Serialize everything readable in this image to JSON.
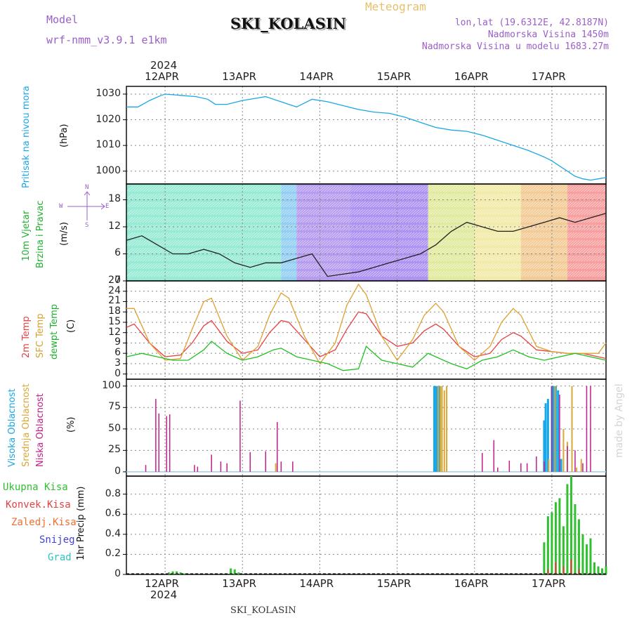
{
  "header": {
    "model_label": "Model",
    "model_value": "wrf-nmm_v3.9.1 e1km",
    "title": "SKI_KOLASIN",
    "meteogram_label": "Meteogram",
    "lonlat": "lon,lat (19.6312E, 42.8187N)",
    "altitude": "Nadmorska Visina 1450m",
    "model_altitude": "Nadmorska Visina u modelu 1683.27m",
    "footer_title": "SKI_KOLASIN",
    "watermark": "made by Angel"
  },
  "colors": {
    "pressure": "#1aa7e8",
    "temp2m": "#e84040",
    "sfc": "#e0a030",
    "dew": "#20c020",
    "high_cloud": "#1aa7e8",
    "mid_cloud": "#d8a838",
    "low_cloud": "#c0208a",
    "precip_total": "#30c030",
    "precip_conv": "#e84040",
    "precip_frz": "#f07030",
    "snow": "#4040e0",
    "hail": "#30c0c0"
  },
  "time_axis": {
    "year": "2024",
    "day_labels": [
      "12APR",
      "13APR",
      "14APR",
      "15APR",
      "16APR",
      "17APR"
    ],
    "start_day_offset": -0.5,
    "end_day_offset": 5.7
  },
  "panels": {
    "pressure": {
      "ylabel_main": "Pritisak na nivou mora",
      "ylabel_unit": "(hPa)",
      "yticks": [
        "1000",
        "1010",
        "1020",
        "1030"
      ],
      "ylim": [
        995,
        1033
      ]
    },
    "wind": {
      "ylabel_main": "10m Vjetar",
      "ylabel_sub": "Brzina i Pravac",
      "ylabel_unit": "(m/s)",
      "yticks": [
        "0",
        "6",
        "12",
        "18"
      ],
      "ylim": [
        0,
        21.5
      ],
      "compass_n": "N",
      "compass_s": "S",
      "compass_w": "W",
      "compass_e": "E"
    },
    "temperature": {
      "ylabel_2m": "2m Temp",
      "ylabel_sfc": "SFC Temp",
      "ylabel_dew": "dewpt Temp",
      "ylabel_unit": "(C)",
      "yticks": [
        "0",
        "3",
        "6",
        "9",
        "12",
        "15",
        "18",
        "21",
        "24",
        "27"
      ],
      "ylim": [
        -1.5,
        27
      ]
    },
    "cloud": {
      "ylabel_high": "Visoka Oblacnost",
      "ylabel_mid": "Srednja Oblacnost",
      "ylabel_low": "Niska Oblacnost",
      "ylabel_unit": "(%)",
      "yticks": [
        "0",
        "25",
        "50",
        "75",
        "100"
      ],
      "ylim": [
        -5,
        108
      ]
    },
    "precip": {
      "legend": [
        "Ukupna Kisa",
        "Konvek.Kisa",
        "Zaledj.Kisa",
        "Snijeg",
        "Grad"
      ],
      "ylabel_main": "1hr Precip",
      "ylabel_unit": "(mm)",
      "yticks": [
        "0",
        "0.2",
        "0.4",
        "0.6",
        "0.8"
      ],
      "ylim": [
        0,
        0.98
      ]
    }
  },
  "chart_data": [
    {
      "type": "line",
      "title": "Pritisak na nivou mora",
      "ylabel": "(hPa)",
      "series": [
        {
          "name": "Pritisak na nivou mora",
          "x": [
            -0.5,
            -0.35,
            -0.2,
            -0.05,
            0.0,
            0.2,
            0.4,
            0.55,
            0.65,
            0.8,
            1.0,
            1.2,
            1.3,
            1.45,
            1.6,
            1.7,
            1.9,
            2.1,
            2.3,
            2.5,
            2.7,
            2.9,
            3.1,
            3.3,
            3.5,
            3.7,
            3.9,
            4.1,
            4.3,
            4.5,
            4.7,
            4.9,
            5.0,
            5.1,
            5.2,
            5.3,
            5.4,
            5.5,
            5.6,
            5.7
          ],
          "y": [
            1025,
            1025,
            1027.5,
            1029.5,
            1030,
            1029.5,
            1029,
            1028,
            1026,
            1026,
            1027.5,
            1028.5,
            1029,
            1027.5,
            1026,
            1025,
            1028,
            1027,
            1025.5,
            1024,
            1023,
            1022.5,
            1021,
            1019,
            1017,
            1016,
            1015.5,
            1014,
            1012,
            1010,
            1008,
            1005.5,
            1004,
            1002,
            1000,
            998,
            997,
            996.5,
            997,
            997.5
          ]
        }
      ],
      "ylim": [
        995,
        1033
      ]
    },
    {
      "type": "line",
      "title": "10m Vjetar Brzina i Pravac",
      "ylabel": "(m/s)",
      "series": [
        {
          "name": "10m Vjetar",
          "x": [
            -0.5,
            -0.3,
            -0.1,
            0.1,
            0.3,
            0.5,
            0.7,
            0.9,
            1.1,
            1.3,
            1.5,
            1.7,
            1.9,
            2.1,
            2.3,
            2.5,
            2.7,
            2.9,
            3.1,
            3.3,
            3.5,
            3.7,
            3.9,
            4.1,
            4.3,
            4.5,
            4.7,
            4.9,
            5.1,
            5.3,
            5.5,
            5.7
          ],
          "y": [
            9,
            10,
            8,
            6,
            6,
            7,
            6,
            4,
            3,
            4,
            4,
            5,
            6,
            1,
            1.5,
            2,
            3,
            4,
            5,
            6,
            8,
            11,
            13,
            12,
            11,
            11,
            12,
            13,
            14,
            13,
            14,
            15
          ]
        }
      ],
      "ylim": [
        0,
        21.5
      ]
    },
    {
      "type": "line",
      "title": "",
      "ylabel": "(C)",
      "series": [
        {
          "name": "2m Temp",
          "x": [
            -0.5,
            -0.4,
            -0.2,
            0.0,
            0.2,
            0.35,
            0.5,
            0.6,
            0.8,
            1.0,
            1.2,
            1.35,
            1.5,
            1.6,
            1.8,
            2.0,
            2.2,
            2.35,
            2.5,
            2.6,
            2.8,
            3.0,
            3.2,
            3.35,
            3.5,
            3.6,
            3.8,
            4.0,
            4.2,
            4.35,
            4.5,
            4.6,
            4.8,
            5.0,
            5.2,
            5.4,
            5.6,
            5.7
          ],
          "y": [
            13.5,
            14.5,
            9,
            5,
            5.5,
            9,
            14,
            15.5,
            9.5,
            6,
            7,
            12,
            15.5,
            15,
            10,
            5,
            7,
            13,
            18,
            17.5,
            11,
            8,
            9,
            12.5,
            14.5,
            13,
            8,
            5,
            6,
            10,
            12,
            11,
            7,
            6.5,
            6,
            6,
            5,
            4.5
          ]
        },
        {
          "name": "SFC Temp",
          "x": [
            -0.5,
            -0.4,
            -0.2,
            0.0,
            0.2,
            0.35,
            0.5,
            0.6,
            0.8,
            1.0,
            1.2,
            1.35,
            1.5,
            1.6,
            1.8,
            2.0,
            2.2,
            2.35,
            2.5,
            2.6,
            2.8,
            3.0,
            3.2,
            3.35,
            3.5,
            3.6,
            3.8,
            4.0,
            4.2,
            4.35,
            4.5,
            4.6,
            4.8,
            5.0,
            5.2,
            5.4,
            5.6,
            5.7
          ],
          "y": [
            19,
            19,
            9,
            4,
            4.5,
            13,
            21,
            22,
            11,
            4,
            8,
            17,
            23.5,
            22,
            11,
            3,
            9,
            20,
            26,
            23,
            11,
            4,
            10,
            17,
            20.5,
            18,
            8,
            4,
            8,
            15,
            19,
            17,
            8,
            6.5,
            6,
            6,
            6,
            9
          ]
        },
        {
          "name": "dewpt Temp",
          "x": [
            -0.5,
            -0.3,
            -0.1,
            0.1,
            0.3,
            0.5,
            0.6,
            0.8,
            1.0,
            1.2,
            1.4,
            1.5,
            1.7,
            1.9,
            2.1,
            2.3,
            2.5,
            2.6,
            2.8,
            3.0,
            3.2,
            3.4,
            3.5,
            3.7,
            3.9,
            4.1,
            4.3,
            4.5,
            4.7,
            4.9,
            5.1,
            5.3,
            5.5,
            5.7
          ],
          "y": [
            5,
            6,
            5,
            4,
            4,
            7,
            9.5,
            6,
            4,
            5,
            7,
            7.5,
            5,
            4,
            3,
            1,
            1.5,
            8,
            4,
            3,
            2,
            6,
            5,
            3,
            1.5,
            4,
            5,
            7,
            5,
            4,
            5,
            6,
            5,
            4
          ]
        }
      ],
      "ylim": [
        -1.5,
        27
      ]
    },
    {
      "type": "bar",
      "title": "",
      "ylabel": "(%)",
      "series": [
        {
          "name": "Visoka Oblacnost",
          "x": [
            3.48,
            3.5,
            3.52,
            3.54,
            4.9,
            4.92,
            4.95,
            5.0,
            5.02,
            5.05,
            5.08,
            5.12
          ],
          "values": [
            100,
            100,
            100,
            100,
            60,
            80,
            85,
            100,
            100,
            100,
            95,
            15
          ]
        },
        {
          "name": "Srednja Oblacnost",
          "x": [
            1.43,
            3.53,
            3.56,
            3.58,
            3.61,
            3.64,
            4.96,
            5.04,
            5.15,
            5.2,
            5.26,
            5.32,
            5.38
          ],
          "values": [
            10,
            100,
            100,
            100,
            95,
            100,
            15,
            100,
            50,
            35,
            100,
            5,
            15
          ]
        },
        {
          "name": "Niska Oblacnost",
          "x": [
            -0.25,
            -0.12,
            -0.08,
            0.02,
            0.06,
            0.38,
            0.42,
            0.6,
            0.72,
            0.8,
            0.97,
            1.1,
            1.3,
            1.45,
            1.5,
            1.65,
            4.1,
            4.25,
            4.3,
            4.45,
            4.6,
            4.68,
            4.8,
            4.9,
            5.0,
            5.1,
            5.2,
            5.3,
            5.4,
            5.45,
            5.5
          ],
          "values": [
            8,
            85,
            68,
            65,
            67,
            8,
            6,
            20,
            12,
            10,
            83,
            23,
            24,
            58,
            12,
            12,
            22,
            37,
            5,
            13,
            10,
            10,
            18,
            12,
            100,
            90,
            30,
            25,
            10,
            100,
            100
          ]
        }
      ],
      "ylim": [
        -5,
        108
      ]
    },
    {
      "type": "bar",
      "title": "",
      "ylabel": "(mm)",
      "series": [
        {
          "name": "Ukupna Kisa",
          "x": [
            0.05,
            0.1,
            0.15,
            0.2,
            0.25,
            0.85,
            0.9,
            0.95,
            4.9,
            4.95,
            5.0,
            5.05,
            5.1,
            5.15,
            5.2,
            5.25,
            5.3,
            5.35,
            5.4,
            5.45,
            5.5,
            5.55,
            5.6,
            5.65,
            5.7
          ],
          "values": [
            0.02,
            0.03,
            0.03,
            0.02,
            0.01,
            0.06,
            0.05,
            0.02,
            0.32,
            0.58,
            0.62,
            0.72,
            0.76,
            0.48,
            0.9,
            0.98,
            0.7,
            0.55,
            0.4,
            0.3,
            0.36,
            0.12,
            0.08,
            0.06,
            0.08
          ]
        },
        {
          "name": "Konvek.Kisa",
          "x": [
            4.95,
            5.05,
            5.15,
            5.25,
            5.35
          ],
          "values": [
            0.05,
            0.12,
            0.08,
            0.15,
            0.05
          ]
        },
        {
          "name": "Zaledj.Kisa",
          "x": [],
          "values": []
        },
        {
          "name": "Snijeg",
          "x": [],
          "values": []
        },
        {
          "name": "Grad",
          "x": [],
          "values": []
        }
      ],
      "ylim": [
        0,
        0.98
      ]
    }
  ]
}
